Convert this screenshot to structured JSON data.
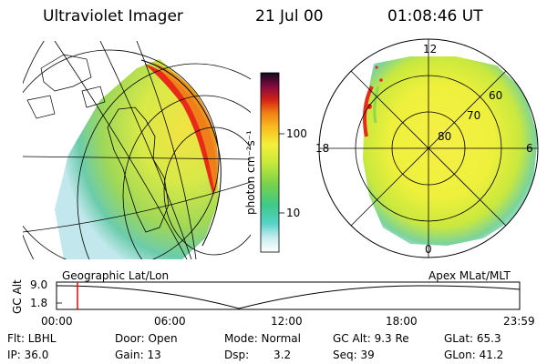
{
  "header": {
    "instrument": "Ultraviolet Imager",
    "date": "21 Jul 00",
    "time": "01:08:46 UT"
  },
  "colorbar": {
    "label": "photon cm⁻²s⁻¹",
    "ticks": [
      "100",
      "10"
    ]
  },
  "polar_plot": {
    "mlt_labels": [
      "12",
      "18",
      "6",
      "0"
    ],
    "lat_labels": [
      "60",
      "70",
      "80"
    ]
  },
  "map_captions": {
    "left": "Geographic Lat/Lon",
    "right": "Apex MLat/MLT"
  },
  "altitude_plot": {
    "ylabel": "GC Alt",
    "yticks": [
      "9.0",
      "1.8"
    ],
    "xticks": [
      "00:00",
      "06:00",
      "12:00",
      "18:00",
      "23:59"
    ],
    "marker_time": "01:08:46",
    "marker_color": "#ff0000"
  },
  "info": {
    "flt": "Flt: LBHL",
    "ip": "IP: 36.0",
    "door": "Door: Open",
    "gain": "Gain: 13",
    "mode": "Mode: Normal",
    "dsp_label": "Dsp:",
    "dsp_value": "3.2",
    "gc_alt": "GC Alt: 9.3 Re",
    "seq": "Seq: 39",
    "glat": "GLat: 65.3",
    "glon": "GLon: 41.2"
  }
}
